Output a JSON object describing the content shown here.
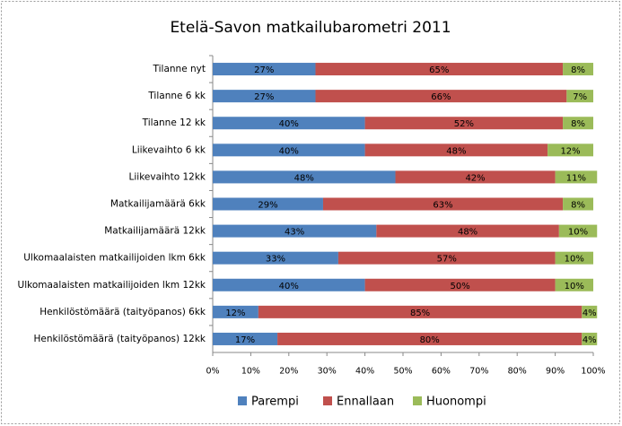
{
  "chart_data": {
    "type": "stacked_bar_horizontal",
    "title": "Etelä-Savon matkailubarometri 2011",
    "categories": [
      "Tilanne nyt",
      "Tilanne 6 kk",
      "Tilanne 12 kk",
      "Liikevaihto 6 kk",
      "Liikevaihto 12kk",
      "Matkailijamäärä 6kk",
      "Matkailijamäärä 12kk",
      "Ulkomaalaisten matkailijoiden lkm 6kk",
      "Ulkomaalaisten matkailijoiden lkm 12kk",
      "Henkilöstömäärä (taityöpanos) 6kk",
      "Henkilöstömäärä (taityöpanos) 12kk"
    ],
    "series": [
      {
        "name": "Parempi",
        "color": "#4f81bd",
        "values": [
          27,
          27,
          40,
          40,
          48,
          29,
          43,
          33,
          40,
          12,
          17
        ],
        "value_labels": [
          "27%",
          "27%",
          "40%",
          "40%",
          "48%",
          "29%",
          "43%",
          "33%",
          "40%",
          "12%",
          "17%"
        ]
      },
      {
        "name": "Ennallaan",
        "color": "#c0504d",
        "values": [
          65,
          66,
          52,
          48,
          42,
          63,
          48,
          57,
          50,
          85,
          80
        ],
        "value_labels": [
          "65%",
          "66%",
          "52%",
          "48%",
          "42%",
          "63%",
          "48%",
          "57%",
          "50%",
          "85%",
          "80%"
        ]
      },
      {
        "name": "Huonompi",
        "color": "#9bbb59",
        "values": [
          8,
          7,
          8,
          12,
          11,
          8,
          10,
          10,
          10,
          4,
          4
        ],
        "value_labels": [
          "8%",
          "7%",
          "8%",
          "12%",
          "11%",
          "8%",
          "10%",
          "10%",
          "10%",
          "4%",
          "4%"
        ]
      }
    ],
    "xlim": [
      0,
      100
    ],
    "xticks": [
      {
        "value": 0,
        "label": "0%"
      },
      {
        "value": 10,
        "label": "10%"
      },
      {
        "value": 20,
        "label": "20%"
      },
      {
        "value": 30,
        "label": "30%"
      },
      {
        "value": 40,
        "label": "40%"
      },
      {
        "value": 50,
        "label": "50%"
      },
      {
        "value": 60,
        "label": "60%"
      },
      {
        "value": 70,
        "label": "70%"
      },
      {
        "value": 80,
        "label": "80%"
      },
      {
        "value": 90,
        "label": "90%"
      },
      {
        "value": 100,
        "label": "100%"
      }
    ]
  }
}
